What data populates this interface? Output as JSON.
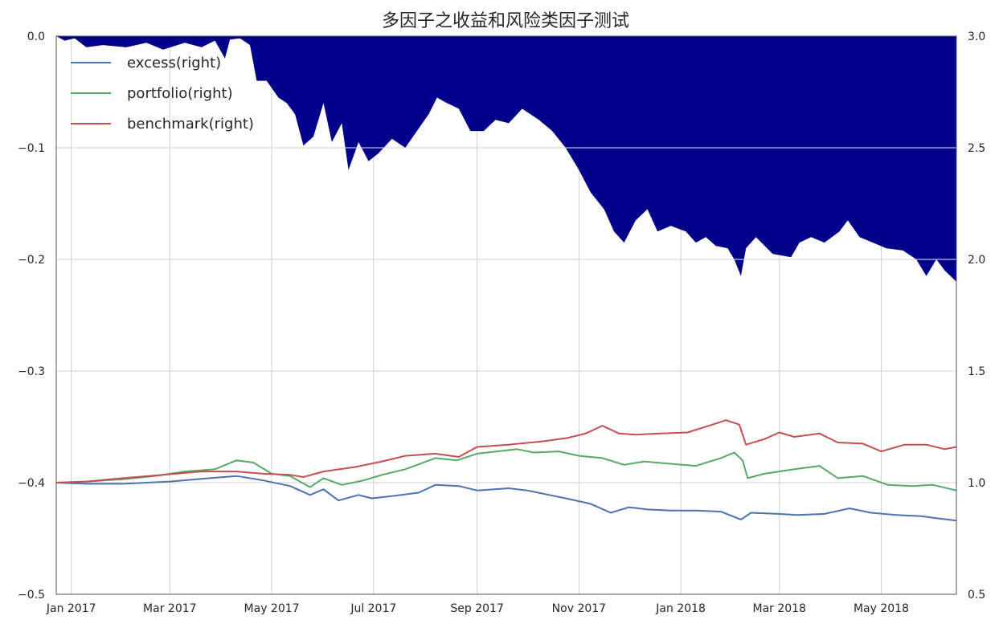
{
  "chart_data": {
    "type": "area+line",
    "title": "多因子之收益和风险类因子测试",
    "xlabel": "",
    "ylabel_left": "",
    "ylabel_right": "",
    "x_tick_labels": [
      "Jan 2017",
      "Mar 2017",
      "May 2017",
      "Jul 2017",
      "Sep 2017",
      "Nov 2017",
      "Jan 2018",
      "Mar 2018",
      "May 2018"
    ],
    "x_tick_dates": [
      "2017-01-01",
      "2017-03-01",
      "2017-05-01",
      "2017-07-01",
      "2017-09-01",
      "2017-11-01",
      "2018-01-01",
      "2018-03-01",
      "2018-05-01"
    ],
    "xlim": [
      "2016-12-23",
      "2018-06-15"
    ],
    "ylim_left": [
      -0.5,
      0.0
    ],
    "y_ticks_left": [
      "−0.5",
      "−0.4",
      "−0.3",
      "−0.2",
      "−0.1",
      "0.0"
    ],
    "ylim_right": [
      0.5,
      3.0
    ],
    "y_ticks_right": [
      "0.5",
      "1.0",
      "1.5",
      "2.0",
      "2.5",
      "3.0"
    ],
    "grid": true,
    "legend_position": "top-left",
    "drawdown": {
      "axis": "left",
      "color": "#00008b",
      "points": [
        [
          "2016-12-23",
          0.0
        ],
        [
          "2016-12-28",
          -0.004
        ],
        [
          "2017-01-03",
          -0.002
        ],
        [
          "2017-01-10",
          -0.01
        ],
        [
          "2017-01-20",
          -0.008
        ],
        [
          "2017-02-03",
          -0.01
        ],
        [
          "2017-02-15",
          -0.006
        ],
        [
          "2017-02-25",
          -0.012
        ],
        [
          "2017-03-10",
          -0.006
        ],
        [
          "2017-03-20",
          -0.01
        ],
        [
          "2017-03-28",
          -0.004
        ],
        [
          "2017-04-03",
          -0.02
        ],
        [
          "2017-04-06",
          -0.003
        ],
        [
          "2017-04-12",
          -0.002
        ],
        [
          "2017-04-18",
          -0.008
        ],
        [
          "2017-04-22",
          -0.04
        ],
        [
          "2017-04-28",
          -0.04
        ],
        [
          "2017-05-05",
          -0.055
        ],
        [
          "2017-05-10",
          -0.06
        ],
        [
          "2017-05-15",
          -0.07
        ],
        [
          "2017-05-20",
          -0.098
        ],
        [
          "2017-05-26",
          -0.09
        ],
        [
          "2017-06-01",
          -0.06
        ],
        [
          "2017-06-06",
          -0.095
        ],
        [
          "2017-06-12",
          -0.078
        ],
        [
          "2017-06-16",
          -0.12
        ],
        [
          "2017-06-22",
          -0.095
        ],
        [
          "2017-06-28",
          -0.112
        ],
        [
          "2017-07-04",
          -0.105
        ],
        [
          "2017-07-12",
          -0.092
        ],
        [
          "2017-07-20",
          -0.1
        ],
        [
          "2017-07-27",
          -0.085
        ],
        [
          "2017-08-03",
          -0.07
        ],
        [
          "2017-08-08",
          -0.055
        ],
        [
          "2017-08-14",
          -0.06
        ],
        [
          "2017-08-21",
          -0.065
        ],
        [
          "2017-08-28",
          -0.085
        ],
        [
          "2017-09-05",
          -0.085
        ],
        [
          "2017-09-12",
          -0.075
        ],
        [
          "2017-09-20",
          -0.078
        ],
        [
          "2017-09-28",
          -0.065
        ],
        [
          "2017-10-08",
          -0.075
        ],
        [
          "2017-10-16",
          -0.085
        ],
        [
          "2017-10-24",
          -0.1
        ],
        [
          "2017-11-01",
          -0.12
        ],
        [
          "2017-11-08",
          -0.14
        ],
        [
          "2017-11-16",
          -0.155
        ],
        [
          "2017-11-22",
          -0.175
        ],
        [
          "2017-11-28",
          -0.185
        ],
        [
          "2017-12-05",
          -0.165
        ],
        [
          "2017-12-12",
          -0.155
        ],
        [
          "2017-12-18",
          -0.175
        ],
        [
          "2017-12-26",
          -0.17
        ],
        [
          "2018-01-04",
          -0.175
        ],
        [
          "2018-01-10",
          -0.185
        ],
        [
          "2018-01-16",
          -0.18
        ],
        [
          "2018-01-22",
          -0.188
        ],
        [
          "2018-01-29",
          -0.19
        ],
        [
          "2018-02-02",
          -0.2
        ],
        [
          "2018-02-06",
          -0.215
        ],
        [
          "2018-02-09",
          -0.19
        ],
        [
          "2018-02-15",
          -0.18
        ],
        [
          "2018-02-25",
          -0.195
        ],
        [
          "2018-03-08",
          -0.198
        ],
        [
          "2018-03-13",
          -0.185
        ],
        [
          "2018-03-20",
          -0.18
        ],
        [
          "2018-03-28",
          -0.185
        ],
        [
          "2018-04-06",
          -0.175
        ],
        [
          "2018-04-11",
          -0.165
        ],
        [
          "2018-04-18",
          -0.18
        ],
        [
          "2018-04-26",
          -0.185
        ],
        [
          "2018-05-04",
          -0.19
        ],
        [
          "2018-05-14",
          -0.192
        ],
        [
          "2018-05-22",
          -0.2
        ],
        [
          "2018-05-28",
          -0.215
        ],
        [
          "2018-06-03",
          -0.2
        ],
        [
          "2018-06-08",
          -0.21
        ],
        [
          "2018-06-15",
          -0.22
        ]
      ]
    },
    "series": [
      {
        "name": "excess(right)",
        "axis": "right",
        "color": "#4c72b0",
        "points": [
          [
            "2016-12-23",
            1.0
          ],
          [
            "2017-01-10",
            0.995
          ],
          [
            "2017-02-01",
            0.995
          ],
          [
            "2017-03-01",
            1.005
          ],
          [
            "2017-03-25",
            1.02
          ],
          [
            "2017-04-10",
            1.03
          ],
          [
            "2017-04-26",
            1.01
          ],
          [
            "2017-05-12",
            0.985
          ],
          [
            "2017-05-24",
            0.945
          ],
          [
            "2017-06-01",
            0.97
          ],
          [
            "2017-06-10",
            0.92
          ],
          [
            "2017-06-22",
            0.945
          ],
          [
            "2017-06-30",
            0.93
          ],
          [
            "2017-07-12",
            0.94
          ],
          [
            "2017-07-28",
            0.955
          ],
          [
            "2017-08-07",
            0.99
          ],
          [
            "2017-08-21",
            0.985
          ],
          [
            "2017-09-01",
            0.965
          ],
          [
            "2017-09-20",
            0.975
          ],
          [
            "2017-10-01",
            0.965
          ],
          [
            "2017-10-24",
            0.93
          ],
          [
            "2017-11-08",
            0.905
          ],
          [
            "2017-11-20",
            0.865
          ],
          [
            "2017-12-01",
            0.89
          ],
          [
            "2017-12-12",
            0.88
          ],
          [
            "2017-12-26",
            0.875
          ],
          [
            "2018-01-10",
            0.875
          ],
          [
            "2018-01-25",
            0.87
          ],
          [
            "2018-02-06",
            0.835
          ],
          [
            "2018-02-12",
            0.865
          ],
          [
            "2018-02-28",
            0.86
          ],
          [
            "2018-03-12",
            0.855
          ],
          [
            "2018-03-28",
            0.86
          ],
          [
            "2018-04-12",
            0.885
          ],
          [
            "2018-04-25",
            0.865
          ],
          [
            "2018-05-10",
            0.855
          ],
          [
            "2018-05-25",
            0.85
          ],
          [
            "2018-06-04",
            0.84
          ],
          [
            "2018-06-15",
            0.83
          ]
        ]
      },
      {
        "name": "portfolio(right)",
        "axis": "right",
        "color": "#55a868",
        "points": [
          [
            "2016-12-23",
            1.0
          ],
          [
            "2017-01-10",
            1.005
          ],
          [
            "2017-02-01",
            1.015
          ],
          [
            "2017-02-20",
            1.03
          ],
          [
            "2017-03-10",
            1.05
          ],
          [
            "2017-03-28",
            1.06
          ],
          [
            "2017-04-10",
            1.1
          ],
          [
            "2017-04-20",
            1.09
          ],
          [
            "2017-05-01",
            1.04
          ],
          [
            "2017-05-12",
            1.03
          ],
          [
            "2017-05-24",
            0.98
          ],
          [
            "2017-06-01",
            1.02
          ],
          [
            "2017-06-12",
            0.99
          ],
          [
            "2017-06-25",
            1.01
          ],
          [
            "2017-07-06",
            1.035
          ],
          [
            "2017-07-20",
            1.06
          ],
          [
            "2017-08-07",
            1.11
          ],
          [
            "2017-08-20",
            1.1
          ],
          [
            "2017-09-01",
            1.13
          ],
          [
            "2017-09-25",
            1.15
          ],
          [
            "2017-10-05",
            1.135
          ],
          [
            "2017-10-20",
            1.14
          ],
          [
            "2017-11-01",
            1.12
          ],
          [
            "2017-11-15",
            1.11
          ],
          [
            "2017-11-28",
            1.08
          ],
          [
            "2017-12-10",
            1.095
          ],
          [
            "2017-12-25",
            1.085
          ],
          [
            "2018-01-10",
            1.075
          ],
          [
            "2018-01-25",
            1.11
          ],
          [
            "2018-02-02",
            1.135
          ],
          [
            "2018-02-07",
            1.1
          ],
          [
            "2018-02-10",
            1.02
          ],
          [
            "2018-02-20",
            1.04
          ],
          [
            "2018-03-10",
            1.06
          ],
          [
            "2018-03-25",
            1.075
          ],
          [
            "2018-04-05",
            1.02
          ],
          [
            "2018-04-20",
            1.03
          ],
          [
            "2018-05-05",
            0.99
          ],
          [
            "2018-05-20",
            0.985
          ],
          [
            "2018-06-01",
            0.99
          ],
          [
            "2018-06-15",
            0.965
          ]
        ]
      },
      {
        "name": "benchmark(right)",
        "axis": "right",
        "color": "#c44e52",
        "points": [
          [
            "2016-12-23",
            1.0
          ],
          [
            "2017-01-10",
            1.005
          ],
          [
            "2017-02-01",
            1.02
          ],
          [
            "2017-02-25",
            1.035
          ],
          [
            "2017-03-20",
            1.05
          ],
          [
            "2017-04-10",
            1.05
          ],
          [
            "2017-04-26",
            1.04
          ],
          [
            "2017-05-12",
            1.035
          ],
          [
            "2017-05-20",
            1.025
          ],
          [
            "2017-06-01",
            1.05
          ],
          [
            "2017-06-20",
            1.07
          ],
          [
            "2017-07-06",
            1.095
          ],
          [
            "2017-07-20",
            1.12
          ],
          [
            "2017-08-07",
            1.13
          ],
          [
            "2017-08-21",
            1.115
          ],
          [
            "2017-09-01",
            1.16
          ],
          [
            "2017-09-20",
            1.17
          ],
          [
            "2017-10-10",
            1.185
          ],
          [
            "2017-10-25",
            1.2
          ],
          [
            "2017-11-05",
            1.22
          ],
          [
            "2017-11-15",
            1.255
          ],
          [
            "2017-11-25",
            1.22
          ],
          [
            "2017-12-05",
            1.215
          ],
          [
            "2017-12-20",
            1.22
          ],
          [
            "2018-01-05",
            1.225
          ],
          [
            "2018-01-20",
            1.26
          ],
          [
            "2018-01-28",
            1.28
          ],
          [
            "2018-02-05",
            1.26
          ],
          [
            "2018-02-09",
            1.17
          ],
          [
            "2018-02-20",
            1.195
          ],
          [
            "2018-03-01",
            1.225
          ],
          [
            "2018-03-10",
            1.205
          ],
          [
            "2018-03-25",
            1.22
          ],
          [
            "2018-04-05",
            1.18
          ],
          [
            "2018-04-20",
            1.175
          ],
          [
            "2018-05-01",
            1.14
          ],
          [
            "2018-05-15",
            1.17
          ],
          [
            "2018-05-28",
            1.17
          ],
          [
            "2018-06-08",
            1.15
          ],
          [
            "2018-06-15",
            1.16
          ]
        ]
      }
    ]
  }
}
